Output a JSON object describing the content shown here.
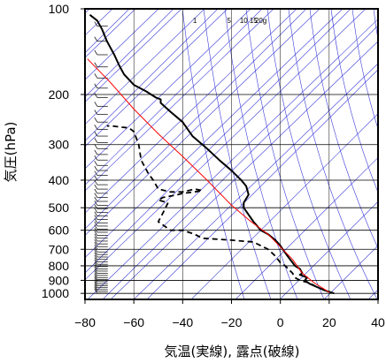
{
  "chart_data": {
    "type": "line",
    "title": "",
    "xlabel": "気温(実線), 露点(破線)",
    "ylabel": "気圧(hPa)",
    "xlim": [
      -80,
      40
    ],
    "ylim": [
      1050,
      100
    ],
    "y_scale": "log",
    "x_ticks": [
      "−80",
      "−60",
      "−40",
      "−20",
      "0",
      "20",
      "40"
    ],
    "x_tick_values": [
      -80,
      -60,
      -40,
      -20,
      0,
      20,
      40
    ],
    "y_ticks": [
      "100",
      "200",
      "300",
      "400",
      "500",
      "600",
      "700",
      "800",
      "900",
      "1000"
    ],
    "y_tick_values": [
      100,
      200,
      300,
      400,
      500,
      600,
      700,
      800,
      900,
      1000
    ],
    "mixing_ratio_labels": [
      "1",
      "5",
      "10",
      "15",
      "20g"
    ],
    "grid": true,
    "background_lines": "skewed isotherms, dry and moist adiabats (blue)",
    "colors": {
      "temperature": "#000000",
      "dewpoint": "#000000",
      "parcel": "#ff0000",
      "background_lines": "#3a3ad8",
      "grid": "#000000",
      "wind_barbs": "#000000"
    },
    "series": [
      {
        "name": "",
        "style": "solid",
        "points": [
          [
            22,
            1000
          ],
          [
            18,
            975
          ],
          [
            15,
            950
          ],
          [
            12,
            925
          ],
          [
            10,
            900
          ],
          [
            11,
            880
          ],
          [
            8,
            860
          ],
          [
            9,
            850
          ],
          [
            8,
            820
          ],
          [
            6,
            800
          ],
          [
            5,
            780
          ],
          [
            4,
            760
          ],
          [
            3,
            740
          ],
          [
            1,
            700
          ],
          [
            0,
            680
          ],
          [
            -2,
            650
          ],
          [
            -5,
            620
          ],
          [
            -8,
            600
          ],
          [
            -11,
            560
          ],
          [
            -15,
            500
          ],
          [
            -15,
            480
          ],
          [
            -13,
            450
          ],
          [
            -14,
            420
          ],
          [
            -16,
            400
          ],
          [
            -20,
            370
          ],
          [
            -25,
            340
          ],
          [
            -30,
            310
          ],
          [
            -36,
            280
          ],
          [
            -40,
            250
          ],
          [
            -45,
            230
          ],
          [
            -49,
            214
          ],
          [
            -49,
            208
          ],
          [
            -51,
            205
          ],
          [
            -55,
            195
          ],
          [
            -60,
            185
          ],
          [
            -64,
            170
          ],
          [
            -66,
            158
          ],
          [
            -68,
            145
          ],
          [
            -71,
            130
          ],
          [
            -73,
            118
          ],
          [
            -75,
            110
          ],
          [
            -78,
            105
          ]
        ]
      },
      {
        "name": "",
        "style": "dashed",
        "points": [
          [
            18,
            975
          ],
          [
            15,
            950
          ],
          [
            12,
            920
          ],
          [
            8,
            900
          ],
          [
            6,
            880
          ],
          [
            5,
            850
          ],
          [
            2,
            800
          ],
          [
            0,
            780
          ],
          [
            -2,
            740
          ],
          [
            -5,
            700
          ],
          [
            -8,
            680
          ],
          [
            -11,
            660
          ],
          [
            -20,
            650
          ],
          [
            -32,
            640
          ],
          [
            -35,
            620
          ],
          [
            -40,
            600
          ],
          [
            -45,
            600
          ],
          [
            -50,
            560
          ],
          [
            -48,
            520
          ],
          [
            -46,
            480
          ],
          [
            -50,
            470
          ],
          [
            -48,
            460
          ],
          [
            -42,
            450
          ],
          [
            -40,
            445
          ],
          [
            -35,
            440
          ],
          [
            -32,
            435
          ],
          [
            -35,
            430
          ],
          [
            -40,
            440
          ],
          [
            -45,
            440
          ],
          [
            -50,
            430
          ],
          [
            -52,
            400
          ],
          [
            -54,
            380
          ],
          [
            -57,
            340
          ],
          [
            -58,
            300
          ],
          [
            -60,
            270
          ],
          [
            -62,
            262
          ],
          [
            -66,
            260
          ],
          [
            -69,
            258
          ],
          [
            -71,
            258
          ]
        ]
      },
      {
        "name": "",
        "style": "solid-red",
        "points": [
          [
            20,
            990
          ],
          [
            14,
            920
          ],
          [
            9,
            850
          ],
          [
            5,
            760
          ],
          [
            1,
            700
          ],
          [
            -5,
            620
          ],
          [
            -12,
            560
          ],
          [
            -20,
            490
          ],
          [
            -30,
            400
          ],
          [
            -40,
            330
          ],
          [
            -50,
            275
          ],
          [
            -60,
            225
          ],
          [
            -70,
            180
          ],
          [
            -79,
            150
          ]
        ]
      }
    ],
    "wind_barbs": "column of wind barbs along the left edge at x ≈ -76 from 1000 to 100 hPa"
  }
}
